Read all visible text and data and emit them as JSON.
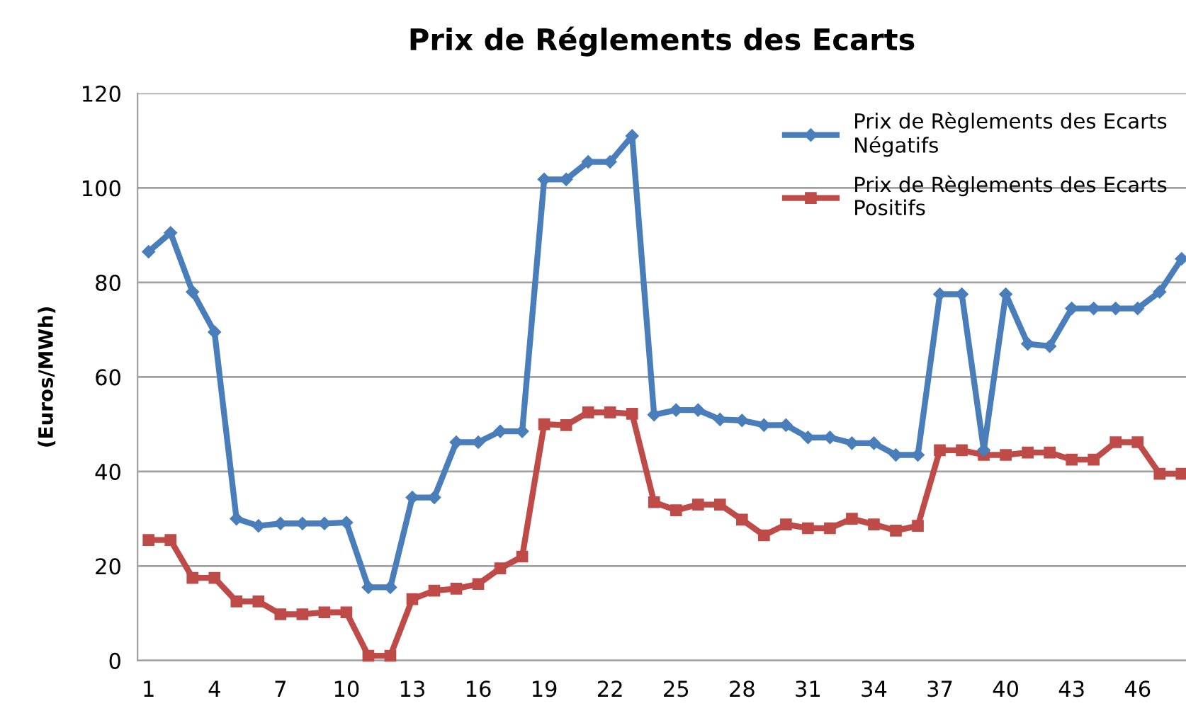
{
  "chart_data": {
    "type": "line",
    "title": "Prix de Réglements des Ecarts",
    "ylabel": "(Euros/MWh)",
    "categories": [
      "1",
      null,
      null,
      "4",
      null,
      null,
      "7",
      null,
      null,
      "10",
      null,
      null,
      "13",
      null,
      null,
      "16",
      null,
      null,
      "19",
      null,
      null,
      "22",
      null,
      null,
      "25",
      null,
      null,
      "28",
      null,
      null,
      "31",
      null,
      null,
      "34",
      null,
      null,
      "37",
      null,
      null,
      "40",
      null,
      null,
      "43",
      null,
      null,
      "46",
      null,
      null
    ],
    "series": [
      {
        "name": "Prix de Règlements des Ecarts Négatifs",
        "color": "#4a7ebb",
        "marker": "diamond",
        "values": [
          86.5,
          90.5,
          78,
          69.5,
          30,
          28.5,
          29,
          29,
          29,
          29.2,
          15.5,
          15.5,
          34.5,
          34.5,
          46.2,
          46.2,
          48.5,
          48.5,
          101.8,
          101.8,
          105.5,
          105.5,
          111,
          52,
          53,
          53,
          51,
          50.8,
          49.8,
          49.8,
          47.2,
          47.2,
          46,
          46,
          43.5,
          43.5,
          77.5,
          77.5,
          44.5,
          77.5,
          67,
          66.5,
          74.5,
          74.5,
          74.5,
          74.5,
          78,
          85
        ]
      },
      {
        "name": "Prix de Règlements des Ecarts Positifs",
        "color": "#be4b48",
        "marker": "square",
        "values": [
          25.5,
          25.5,
          17.5,
          17.5,
          12.5,
          12.5,
          9.8,
          9.8,
          10.2,
          10.2,
          1,
          1,
          13,
          14.8,
          15.2,
          16.2,
          19.5,
          22,
          50,
          49.8,
          52.5,
          52.5,
          52.2,
          33.5,
          31.8,
          33,
          33,
          29.8,
          26.5,
          28.8,
          28,
          28,
          30,
          28.8,
          27.5,
          28.5,
          44.5,
          44.5,
          43.5,
          43.5,
          44,
          44,
          42.5,
          42.5,
          46.2,
          46.2,
          39.5,
          39.5
        ]
      }
    ],
    "ylim": [
      0,
      120
    ],
    "yticks": [
      0,
      20,
      40,
      60,
      80,
      100,
      120
    ],
    "grid": "y",
    "legend": "top right",
    "line_style": "solid"
  }
}
